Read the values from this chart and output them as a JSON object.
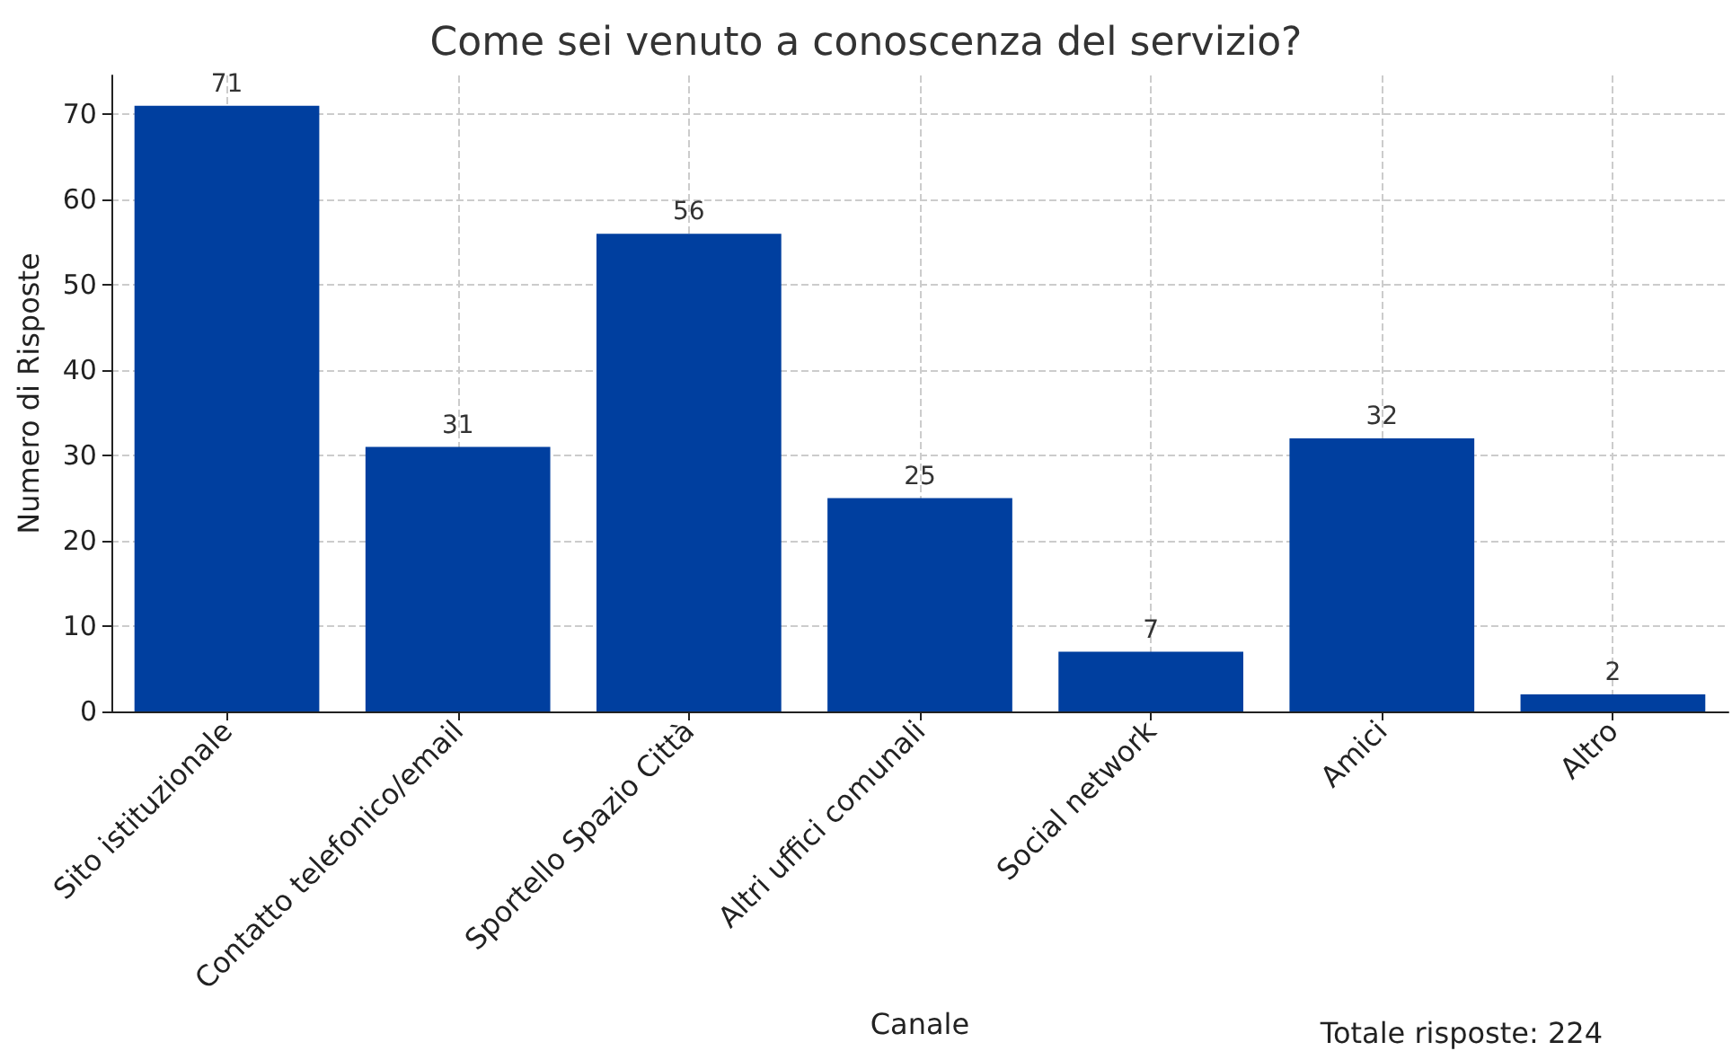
{
  "chart_data": {
    "type": "bar",
    "title": "Come sei venuto a conoscenza del servizio?",
    "xlabel": "Canale",
    "ylabel": "Numero di Risposte",
    "categories": [
      "Sito istituzionale",
      "Contatto telefonico/email",
      "Sportello Spazio Città",
      "Altri uffici comunali",
      "Social network",
      "Amici",
      "Altro"
    ],
    "values": [
      71,
      31,
      56,
      25,
      7,
      32,
      2
    ],
    "color": "#003f9f",
    "ylim": [
      0,
      74.55
    ],
    "yticks": [
      0,
      10,
      20,
      30,
      40,
      50,
      60,
      70
    ],
    "grid": true,
    "data_labels": true,
    "annotations": [
      "Totale risposte: 224"
    ]
  }
}
